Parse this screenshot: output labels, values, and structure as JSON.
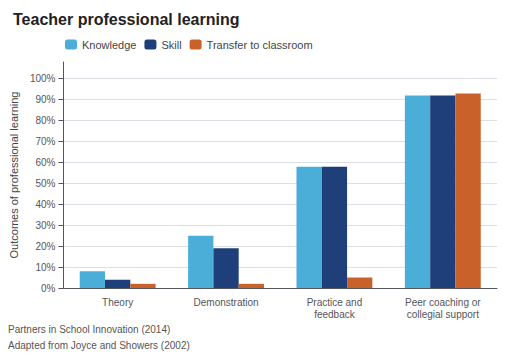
{
  "chart_data": {
    "type": "bar",
    "title": "Teacher professional learning",
    "ylabel": "Outcomes of professional learning",
    "categories": [
      "Theory",
      "Demonstration",
      "Practice and\nfeedback",
      "Peer coaching or\ncollegial support"
    ],
    "series": [
      {
        "name": "Knowledge",
        "color": "#4aaed9",
        "values": [
          8,
          25,
          58,
          92
        ]
      },
      {
        "name": "Skill",
        "color": "#1f3f7a",
        "values": [
          4,
          19,
          58,
          92
        ]
      },
      {
        "name": "Transfer to classroom",
        "color": "#c8622a",
        "values": [
          2,
          2,
          5,
          93
        ]
      }
    ],
    "ylim": [
      0,
      108
    ],
    "yticks": [
      {
        "value": 0,
        "label": "0%"
      },
      {
        "value": 10,
        "label": "10%"
      },
      {
        "value": 20,
        "label": "20%"
      },
      {
        "value": 30,
        "label": "30%"
      },
      {
        "value": 40,
        "label": "40%"
      },
      {
        "value": 50,
        "label": "50%"
      },
      {
        "value": 60,
        "label": "60%"
      },
      {
        "value": 70,
        "label": "70%"
      },
      {
        "value": 80,
        "label": "80%"
      },
      {
        "value": 90,
        "label": "90%"
      },
      {
        "value": 100,
        "label": "100%"
      }
    ],
    "annotations": [
      "Partners in School Innovation (2014)",
      "Adapted from Joyce and Showers (2002)"
    ],
    "grid": true,
    "legend": "upper left"
  }
}
